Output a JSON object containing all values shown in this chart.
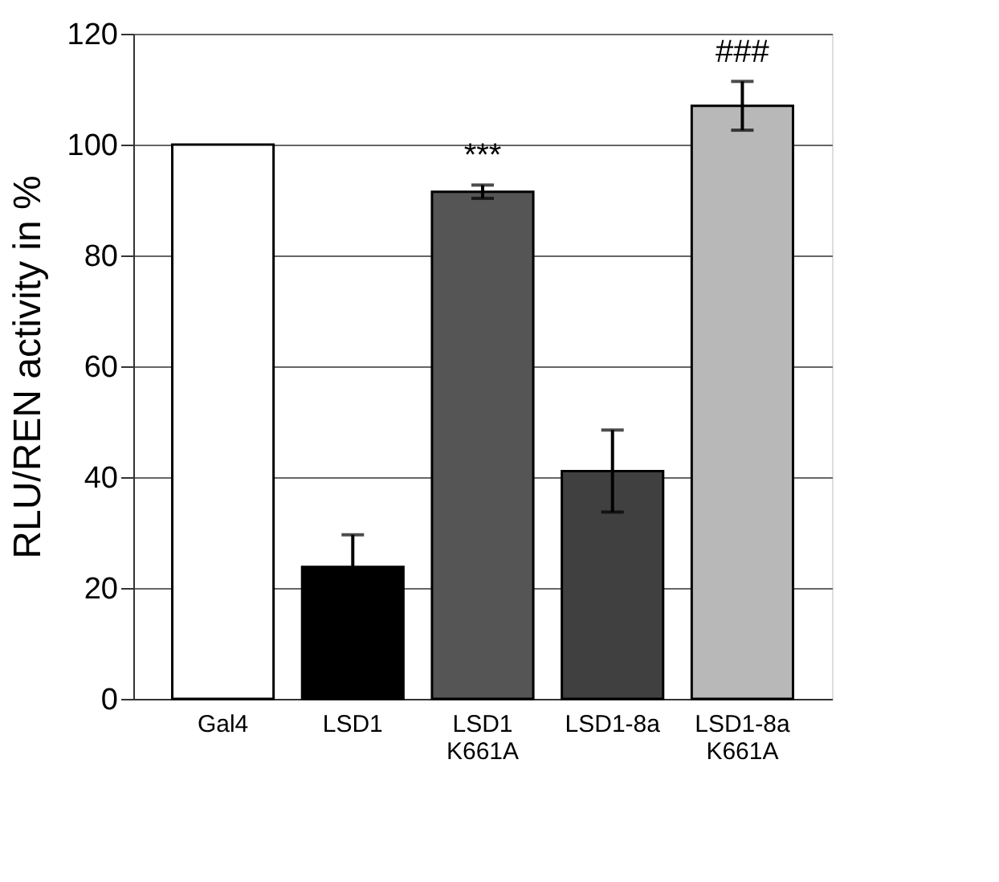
{
  "chart_data": {
    "type": "bar",
    "ylabel": "RLU/REN activity in %",
    "categories": [
      "Gal4",
      "LSD1",
      "LSD1\nK661A",
      "LSD1-8a",
      "LSD1-8a\nK661A"
    ],
    "values": [
      100,
      23.8,
      91.5,
      41.1,
      107.0
    ],
    "errors": [
      null,
      5.8,
      1.2,
      7.4,
      4.4
    ],
    "colors": [
      "#ffffff",
      "#000000",
      "#555555",
      "#404040",
      "#b8b8b8"
    ],
    "ylim": [
      0,
      120
    ],
    "yticks": [
      0,
      20,
      40,
      60,
      80,
      100,
      120
    ],
    "grid": "y",
    "legend": false,
    "value_labels": [
      null,
      null,
      "***",
      null,
      "###"
    ]
  }
}
